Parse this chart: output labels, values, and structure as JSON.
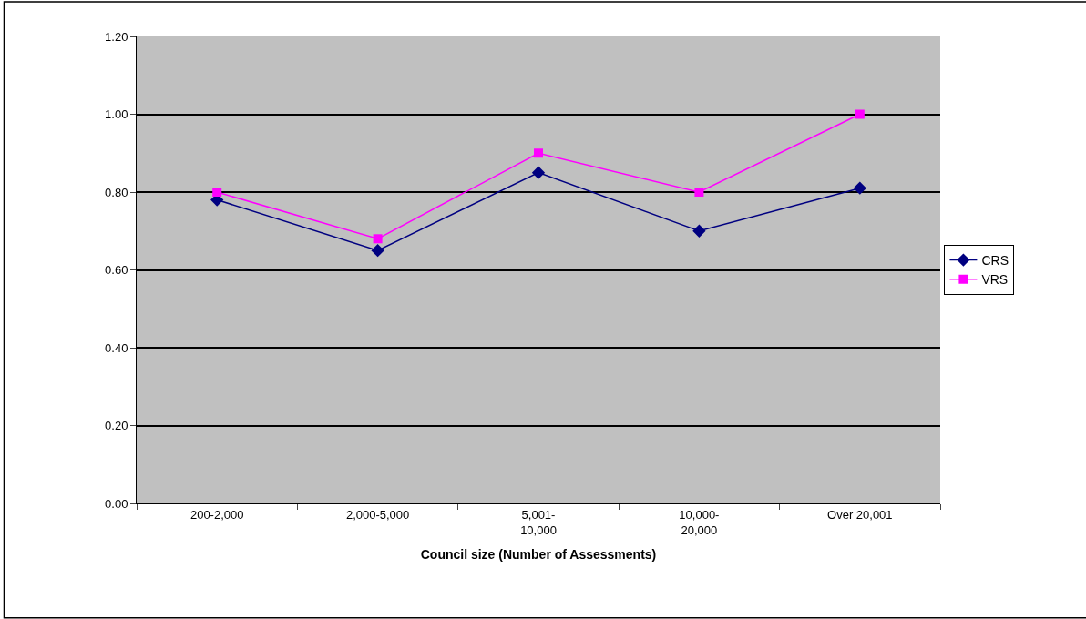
{
  "chart_data": {
    "type": "line",
    "xlabel": "Council size (Number of Assessments)",
    "categories": [
      "200-2,000",
      "2,000-5,000",
      "5,001-10,000",
      "10,000-20,000",
      "Over 20,001"
    ],
    "series": [
      {
        "name": "CRS",
        "color": "#000080",
        "values": [
          0.78,
          0.65,
          0.85,
          0.7,
          0.81
        ],
        "marker": "diamond"
      },
      {
        "name": "VRS",
        "color": "#ff00ff",
        "values": [
          0.8,
          0.68,
          0.9,
          0.8,
          1.0
        ],
        "marker": "square"
      }
    ],
    "ylim": [
      0,
      1.2
    ],
    "yticks": [
      {
        "value": 0,
        "label": "0.00"
      },
      {
        "value": 0.2,
        "label": "0.20"
      },
      {
        "value": 0.4,
        "label": "0.40"
      },
      {
        "value": 0.6,
        "label": "0.60"
      },
      {
        "value": 0.8,
        "label": "0.80"
      },
      {
        "value": 1.0,
        "label": "1.00"
      },
      {
        "value": 1.2,
        "label": "1.20"
      }
    ],
    "grid": "y",
    "legend": "right",
    "line_style": "solid"
  }
}
